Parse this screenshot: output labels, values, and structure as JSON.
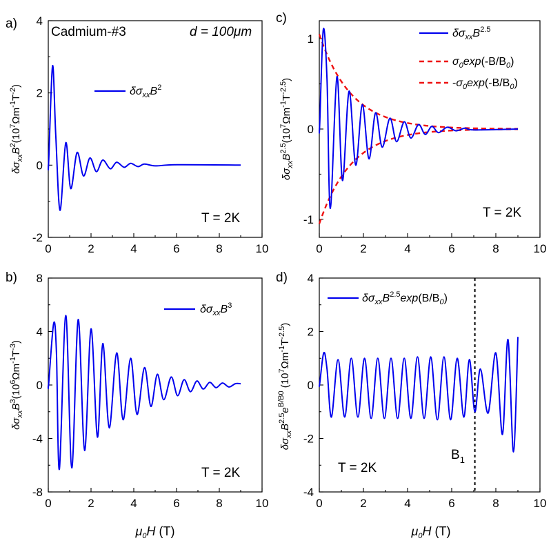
{
  "chart_data": [
    {
      "id": "a",
      "type": "line",
      "panel_label": "a)",
      "annotations": [
        "Cadmium-#3",
        "d = 100μm",
        "T = 2K"
      ],
      "ylabel": "δσxxB²(10⁷Ωm⁻¹T⁻²)",
      "xlim": [
        0,
        10
      ],
      "ylim": [
        -2,
        4
      ],
      "xticks": [
        "0",
        "2",
        "4",
        "6",
        "8",
        "10"
      ],
      "yticks": [
        "-2",
        "0",
        "2",
        "4"
      ],
      "legend": [
        "δσxxB²"
      ],
      "series": [
        {
          "name": "δσxxB²",
          "color": "#0000ee",
          "peaks": [
            [
              0.02,
              0.1
            ],
            [
              0.2,
              2.75
            ],
            [
              0.35,
              0.85
            ],
            [
              0.55,
              -1.25
            ],
            [
              0.82,
              0.62
            ],
            [
              1.05,
              -0.65
            ],
            [
              1.35,
              0.35
            ],
            [
              1.65,
              -0.3
            ],
            [
              1.95,
              0.2
            ],
            [
              2.25,
              -0.18
            ],
            [
              2.55,
              0.14
            ],
            [
              2.9,
              -0.1
            ],
            [
              3.2,
              0.08
            ],
            [
              3.55,
              -0.06
            ],
            [
              3.85,
              0.05
            ],
            [
              4.2,
              -0.04
            ],
            [
              4.5,
              0.03
            ],
            [
              5.0,
              -0.02
            ],
            [
              6.0,
              0.01
            ],
            [
              9.0,
              0.0
            ]
          ]
        }
      ]
    },
    {
      "id": "b",
      "type": "line",
      "panel_label": "b)",
      "annotations": [
        "T = 2K"
      ],
      "ylabel": "δσxxB³(10⁶Ωm⁻¹T⁻³)",
      "xlabel": "μ0H (T)",
      "xlim": [
        0,
        10
      ],
      "ylim": [
        -8,
        8
      ],
      "xticks": [
        "0",
        "2",
        "4",
        "6",
        "8",
        "10"
      ],
      "yticks": [
        "-8",
        "-4",
        "0",
        "4",
        "8"
      ],
      "legend": [
        "δσxxB³"
      ],
      "series": [
        {
          "name": "δσxxB³",
          "color": "#0000ee",
          "peaks": [
            [
              0.02,
              0.1
            ],
            [
              0.25,
              4.6
            ],
            [
              0.38,
              2.5
            ],
            [
              0.52,
              -6.3
            ],
            [
              0.82,
              5.2
            ],
            [
              1.1,
              -6.2
            ],
            [
              1.4,
              4.9
            ],
            [
              1.7,
              -4.9
            ],
            [
              2.0,
              4.2
            ],
            [
              2.3,
              -3.9
            ],
            [
              2.55,
              3.1
            ],
            [
              2.85,
              -3.2
            ],
            [
              3.2,
              2.4
            ],
            [
              3.5,
              -2.6
            ],
            [
              3.85,
              2.0
            ],
            [
              4.15,
              -2.2
            ],
            [
              4.5,
              1.3
            ],
            [
              4.8,
              -1.6
            ],
            [
              5.1,
              0.8
            ],
            [
              5.4,
              -1.1
            ],
            [
              5.75,
              0.6
            ],
            [
              6.05,
              -0.8
            ],
            [
              6.35,
              0.4
            ],
            [
              6.65,
              -0.5
            ],
            [
              6.95,
              0.3
            ],
            [
              7.25,
              -0.3
            ],
            [
              7.55,
              0.2
            ],
            [
              7.85,
              -0.2
            ],
            [
              8.15,
              0.15
            ],
            [
              8.45,
              -0.15
            ],
            [
              8.75,
              0.1
            ],
            [
              9.0,
              0.1
            ]
          ]
        }
      ]
    },
    {
      "id": "c",
      "type": "line",
      "panel_label": "c)",
      "annotations": [
        "T = 2K"
      ],
      "ylabel": "δσxxB^2.5(10⁷Ωm⁻¹T^-2.5)",
      "xlim": [
        0,
        10
      ],
      "ylim": [
        -1.2,
        1.2
      ],
      "xticks": [
        "0",
        "2",
        "4",
        "6",
        "8",
        "10"
      ],
      "yticks": [
        "-1",
        "0",
        "1"
      ],
      "legend": [
        "δσxxB^2.5",
        "σ0exp(-B/B0)",
        "-σ0exp(-B/B0)"
      ],
      "envelope": {
        "sigma0": 1.05,
        "B0": 1.45
      },
      "series": [
        {
          "name": "δσxxB^2.5",
          "color": "#0000ee",
          "peaks": [
            [
              0.02,
              0.05
            ],
            [
              0.18,
              1.1
            ],
            [
              0.35,
              0.55
            ],
            [
              0.5,
              -0.88
            ],
            [
              0.8,
              0.58
            ],
            [
              1.05,
              -0.57
            ],
            [
              1.35,
              0.42
            ],
            [
              1.65,
              -0.4
            ],
            [
              1.95,
              0.27
            ],
            [
              2.25,
              -0.33
            ],
            [
              2.55,
              0.18
            ],
            [
              2.85,
              -0.2
            ],
            [
              3.2,
              0.12
            ],
            [
              3.5,
              -0.14
            ],
            [
              3.85,
              0.08
            ],
            [
              4.15,
              -0.1
            ],
            [
              4.5,
              0.05
            ],
            [
              4.8,
              -0.06
            ],
            [
              5.1,
              0.03
            ],
            [
              5.4,
              -0.04
            ],
            [
              5.8,
              0.02
            ],
            [
              6.2,
              -0.02
            ],
            [
              6.6,
              0.01
            ],
            [
              7.0,
              -0.01
            ],
            [
              9.0,
              0.0
            ]
          ]
        }
      ]
    },
    {
      "id": "d",
      "type": "line",
      "panel_label": "d)",
      "annotations": [
        "T = 2K",
        "B1"
      ],
      "ylabel": "δσxxB^2.5 e^(B/B0) (10⁷Ωm⁻¹T^-2.5)",
      "xlabel": "μ0H (T)",
      "xlim": [
        0,
        10
      ],
      "ylim": [
        -4,
        4
      ],
      "xticks": [
        "0",
        "2",
        "4",
        "6",
        "8",
        "10"
      ],
      "yticks": [
        "-4",
        "-2",
        "0",
        "2",
        "4"
      ],
      "legend": [
        "δσxxB^2.5exp(B/B0)"
      ],
      "vline_x": 7.05,
      "series": [
        {
          "name": "δσxxB^2.5exp(B/B0)",
          "color": "#0000ee",
          "peaks": [
            [
              0.02,
              0.05
            ],
            [
              0.2,
              1.2
            ],
            [
              0.35,
              0.6
            ],
            [
              0.55,
              -1.2
            ],
            [
              0.85,
              0.95
            ],
            [
              1.15,
              -1.2
            ],
            [
              1.45,
              1.0
            ],
            [
              1.75,
              -1.2
            ],
            [
              2.05,
              1.0
            ],
            [
              2.35,
              -1.25
            ],
            [
              2.65,
              1.0
            ],
            [
              2.95,
              -1.25
            ],
            [
              3.25,
              1.0
            ],
            [
              3.55,
              -1.25
            ],
            [
              3.85,
              1.0
            ],
            [
              4.15,
              -1.25
            ],
            [
              4.45,
              1.05
            ],
            [
              4.75,
              -1.25
            ],
            [
              5.05,
              1.05
            ],
            [
              5.35,
              -1.3
            ],
            [
              5.65,
              1.05
            ],
            [
              5.95,
              -1.3
            ],
            [
              6.25,
              1.0
            ],
            [
              6.55,
              -1.2
            ],
            [
              6.8,
              0.95
            ],
            [
              7.05,
              -1.0
            ],
            [
              7.3,
              0.6
            ],
            [
              7.65,
              -1.05
            ],
            [
              8.0,
              1.2
            ],
            [
              8.3,
              -1.85
            ],
            [
              8.55,
              1.7
            ],
            [
              8.8,
              -2.5
            ],
            [
              9.0,
              1.8
            ]
          ]
        }
      ]
    }
  ]
}
